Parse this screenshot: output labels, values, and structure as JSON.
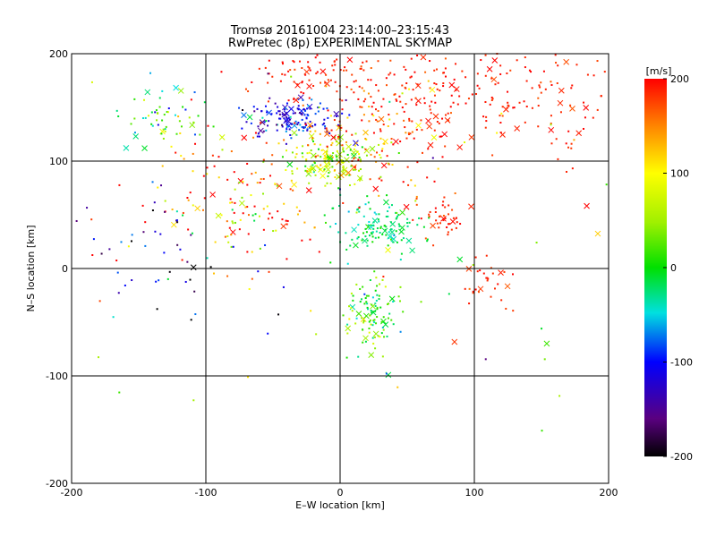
{
  "chart_data": {
    "type": "scatter",
    "title": "Tromsø 20161004 23:14:00–23:15:43",
    "subtitle": "RwPretec (8p) EXPERIMENTAL SKYMAP",
    "xlabel": "E–W location [km]",
    "ylabel": "N–S location [km]",
    "xlim": [
      -200,
      200
    ],
    "ylim": [
      -200,
      200
    ],
    "xticks": [
      -200,
      -100,
      0,
      100,
      200
    ],
    "yticks": [
      -200,
      -100,
      0,
      100,
      200
    ],
    "grid": true,
    "colorbar": {
      "label": "[m/s]",
      "min": -200,
      "max": 200,
      "ticks": [
        200,
        100,
        0,
        -100,
        -200
      ],
      "colormap": "rainbow: black-purple-blue-cyan-green-yellow-orange-red"
    },
    "clusters": [
      {
        "x": -35,
        "y": 140,
        "sx": 18,
        "sy": 9,
        "v": -110,
        "sv": 30,
        "n": 140
      },
      {
        "x": -5,
        "y": 100,
        "sx": 18,
        "sy": 10,
        "v": 60,
        "sv": 35,
        "n": 150
      },
      {
        "x": 28,
        "y": 38,
        "sx": 15,
        "sy": 12,
        "v": -20,
        "sv": 20,
        "n": 120
      },
      {
        "x": 25,
        "y": -45,
        "sx": 10,
        "sy": 18,
        "v": 10,
        "sv": 40,
        "n": 110
      },
      {
        "x": 75,
        "y": 45,
        "sx": 12,
        "sy": 10,
        "v": 185,
        "sv": 12,
        "n": 45
      },
      {
        "x": 60,
        "y": 165,
        "sx": 50,
        "sy": 25,
        "v": 190,
        "sv": 12,
        "n": 220
      },
      {
        "x": -25,
        "y": 185,
        "sx": 20,
        "sy": 10,
        "v": 190,
        "sv": 12,
        "n": 60
      },
      {
        "x": 165,
        "y": 155,
        "sx": 22,
        "sy": 25,
        "v": 190,
        "sv": 10,
        "n": 60
      },
      {
        "x": -70,
        "y": 60,
        "sx": 35,
        "sy": 30,
        "v": 140,
        "sv": 70,
        "n": 140
      },
      {
        "x": -130,
        "y": 140,
        "sx": 20,
        "sy": 15,
        "v": 0,
        "sv": 60,
        "n": 60
      },
      {
        "x": 110,
        "y": -15,
        "sx": 10,
        "sy": 12,
        "v": 190,
        "sv": 10,
        "n": 30
      },
      {
        "x": -130,
        "y": 10,
        "sx": 35,
        "sy": 40,
        "v": -120,
        "sv": 60,
        "n": 50
      },
      {
        "x": 30,
        "y": 120,
        "sx": 35,
        "sy": 30,
        "v": 150,
        "sv": 60,
        "n": 120
      },
      {
        "x": 0,
        "y": 0,
        "sx": 120,
        "sy": 100,
        "v": 100,
        "sv": 110,
        "n": 60
      }
    ]
  }
}
